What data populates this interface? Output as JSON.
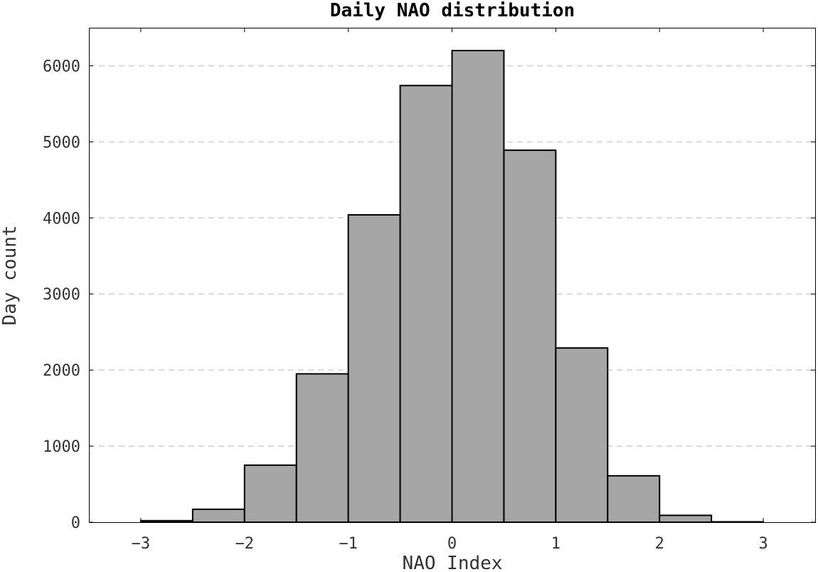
{
  "chart_data": {
    "type": "bar",
    "title": "Daily NAO distribution",
    "xlabel": "NAO Index",
    "ylabel": "Day count",
    "xlim": [
      -3.5,
      3.5
    ],
    "ylim": [
      0,
      6500
    ],
    "bin_width": 0.5,
    "bins": [
      {
        "x0": -3.5,
        "x1": -3.0,
        "count": 0
      },
      {
        "x0": -3.0,
        "x1": -2.5,
        "count": 20
      },
      {
        "x0": -2.5,
        "x1": -2.0,
        "count": 170
      },
      {
        "x0": -2.0,
        "x1": -1.5,
        "count": 750
      },
      {
        "x0": -1.5,
        "x1": -1.0,
        "count": 1950
      },
      {
        "x0": -1.0,
        "x1": -0.5,
        "count": 4040
      },
      {
        "x0": -0.5,
        "x1": 0.0,
        "count": 5740
      },
      {
        "x0": 0.0,
        "x1": 0.5,
        "count": 6200
      },
      {
        "x0": 0.5,
        "x1": 1.0,
        "count": 4890
      },
      {
        "x0": 1.0,
        "x1": 1.5,
        "count": 2290
      },
      {
        "x0": 1.5,
        "x1": 2.0,
        "count": 610
      },
      {
        "x0": 2.0,
        "x1": 2.5,
        "count": 90
      },
      {
        "x0": 2.5,
        "x1": 3.0,
        "count": 5
      },
      {
        "x0": 3.0,
        "x1": 3.5,
        "count": 0
      }
    ],
    "xticks": [
      -3,
      -2,
      -1,
      0,
      1,
      2,
      3
    ],
    "xtick_labels": [
      "−3",
      "−2",
      "−1",
      "0",
      "1",
      "2",
      "3"
    ],
    "yticks": [
      0,
      1000,
      2000,
      3000,
      4000,
      5000,
      6000
    ],
    "ytick_labels": [
      "0",
      "1000",
      "2000",
      "3000",
      "4000",
      "5000",
      "6000"
    ],
    "grid": "horizontal dashed",
    "colors": {
      "bar_fill": "#a6a6a6",
      "bar_edge": "#000000",
      "grid": "#d9d9d9"
    }
  }
}
